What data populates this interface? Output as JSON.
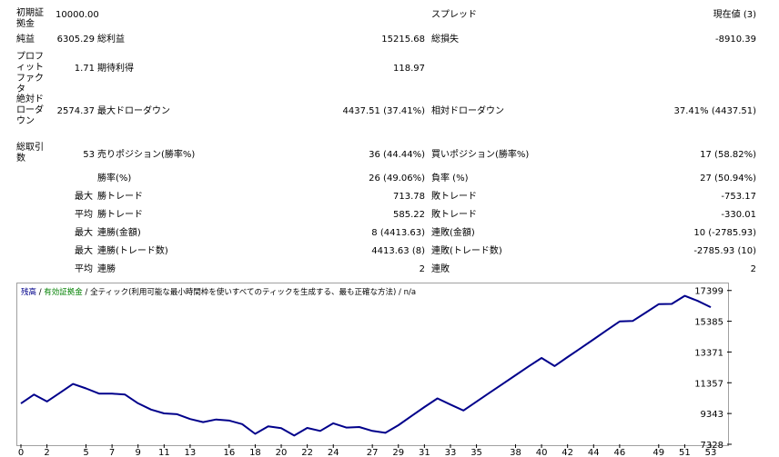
{
  "stats": {
    "initial_deposit_label": "初期証拠金",
    "initial_deposit": "10000.00",
    "spread_label": "スプレッド",
    "spread_value": "現在値 (3)",
    "net_profit_label": "純益",
    "net_profit": "6305.29",
    "gross_profit_label": "総利益",
    "gross_profit": "15215.68",
    "gross_loss_label": "総損失",
    "gross_loss": "-8910.39",
    "profit_factor_label": "プロフィットファクタ",
    "profit_factor": "1.71",
    "expected_payoff_label": "期待利得",
    "expected_payoff": "118.97",
    "abs_drawdown_label": "絶対ドローダウン",
    "abs_drawdown": "2574.37",
    "max_drawdown_label": "最大ドローダウン",
    "max_drawdown": "4437.51 (37.41%)",
    "rel_drawdown_label": "相対ドローダウン",
    "rel_drawdown": "37.41% (4437.51)",
    "total_trades_label": "総取引数",
    "total_trades": "53",
    "short_label": "売りポジション(勝率%)",
    "short_value": "36 (44.44%)",
    "long_label": "買いポジション(勝率%)",
    "long_value": "17 (58.82%)",
    "win_rate_label": "勝率(%)",
    "win_rate": "26 (49.06%)",
    "loss_rate_label": "負率 (%)",
    "loss_rate": "27 (50.94%)",
    "largest_prefix": "最大",
    "average_prefix": "平均",
    "largest_win_label": "勝トレード",
    "largest_win": "713.78",
    "largest_loss_label": "敗トレード",
    "largest_loss": "-753.17",
    "avg_win_label": "勝トレード",
    "avg_win": "585.22",
    "avg_loss_label": "敗トレード",
    "avg_loss": "-330.01",
    "max_cons_wins_label": "連勝(金額)",
    "max_cons_wins": "8 (4413.63)",
    "max_cons_losses_label": "連敗(金額)",
    "max_cons_losses": "10 (-2785.93)",
    "max_cons_profit_label": "連勝(トレード数)",
    "max_cons_profit": "4413.63 (8)",
    "max_cons_loss_label": "連敗(トレード数)",
    "max_cons_loss": "-2785.93 (10)",
    "avg_cons_wins_label": "連勝",
    "avg_cons_wins": "2",
    "avg_cons_losses_label": "連敗",
    "avg_cons_losses": "2"
  },
  "chart_legend": {
    "balance": "残高",
    "sep1": " / ",
    "equity": "有効証拠金",
    "sep2": " / ",
    "model": "全ティック(利用可能な最小時間枠を使いすべてのティックを生成する、最も正確な方法)",
    "sep3": " / ",
    "tail": "n/a"
  },
  "colors": {
    "balance": "#00008b",
    "equity": "#008000",
    "legend_text": "#000000"
  },
  "chart_data": {
    "type": "line",
    "series": [
      {
        "name": "残高",
        "x": [
          0,
          1,
          2,
          3,
          4,
          5,
          6,
          7,
          8,
          9,
          10,
          11,
          12,
          13,
          14,
          15,
          16,
          17,
          18,
          19,
          20,
          21,
          22,
          23,
          24,
          25,
          26,
          27,
          28,
          29,
          30,
          31,
          32,
          33,
          34,
          35,
          36,
          37,
          38,
          39,
          40,
          41,
          42,
          43,
          44,
          45,
          46,
          47,
          48,
          49,
          50,
          51,
          52,
          53
        ],
        "values": [
          10000,
          10580,
          10130,
          10700,
          11280,
          10990,
          10650,
          10650,
          10580,
          10010,
          9600,
          9350,
          9300,
          8980,
          8780,
          8950,
          8880,
          8650,
          8010,
          8500,
          8380,
          7900,
          8400,
          8200,
          8700,
          8420,
          8460,
          8200,
          8080,
          8580,
          9180,
          9770,
          10330,
          9930,
          9540,
          10120,
          10700,
          11270,
          11850,
          12430,
          12980,
          12450,
          13040,
          13620,
          14200,
          14790,
          15370,
          15400,
          15950,
          16500,
          16520,
          17050,
          16720,
          16305
        ]
      }
    ],
    "x_ticks": [
      "0",
      "2",
      "5",
      "7",
      "9",
      "11",
      "13",
      "16",
      "18",
      "20",
      "22",
      "24",
      "27",
      "29",
      "31",
      "33",
      "35",
      "38",
      "40",
      "42",
      "44",
      "46",
      "49",
      "51",
      "53"
    ],
    "x_tick_values": [
      0,
      2,
      5,
      7,
      9,
      11,
      13,
      16,
      18,
      20,
      22,
      24,
      27,
      29,
      31,
      33,
      35,
      38,
      40,
      42,
      44,
      46,
      49,
      51,
      53
    ],
    "y_ticks": [
      "17399",
      "15385",
      "13371",
      "11357",
      "9343",
      "7328"
    ],
    "y_tick_values": [
      17399,
      15385,
      13371,
      11357,
      9343,
      7328
    ],
    "ylim": [
      7328,
      17800
    ],
    "xlim": [
      0,
      53
    ]
  }
}
